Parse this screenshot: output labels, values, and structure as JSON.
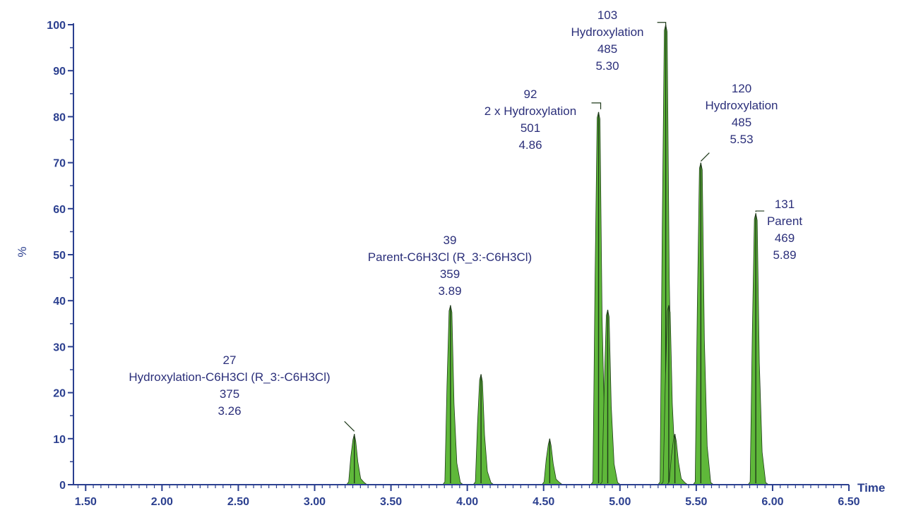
{
  "chart_data": {
    "type": "area",
    "title": "",
    "xlabel": "Time",
    "ylabel": "%",
    "xlim": [
      1.42,
      6.5
    ],
    "ylim": [
      0,
      100
    ],
    "x_ticks": [
      "1.50",
      "2.00",
      "2.50",
      "3.00",
      "3.50",
      "4.00",
      "4.50",
      "5.00",
      "5.50",
      "6.00",
      "6.50"
    ],
    "y_ticks": [
      "0",
      "10",
      "20",
      "30",
      "40",
      "50",
      "60",
      "70",
      "80",
      "90",
      "100"
    ],
    "grid": false,
    "legend": "none",
    "colors": {
      "axis": "#2b3f8f",
      "peak_fill": "#5fb83a",
      "peak_line": "#1f3a1a",
      "label": "#2b2f7a"
    },
    "peaks": [
      {
        "rt": 3.26,
        "height": 11
      },
      {
        "rt": 3.89,
        "height": 39
      },
      {
        "rt": 4.09,
        "height": 24
      },
      {
        "rt": 4.54,
        "height": 10
      },
      {
        "rt": 4.86,
        "height": 81
      },
      {
        "rt": 4.92,
        "height": 38
      },
      {
        "rt": 5.3,
        "height": 100
      },
      {
        "rt": 5.32,
        "height": 39
      },
      {
        "rt": 5.36,
        "height": 11
      },
      {
        "rt": 5.53,
        "height": 70
      },
      {
        "rt": 5.89,
        "height": 59
      }
    ],
    "annotations": [
      {
        "rt": 3.26,
        "lines": [
          "27",
          "Hydroxylation-C6H3Cl (R_3:-C6H3Cl)",
          "375",
          "3.26"
        ]
      },
      {
        "rt": 3.89,
        "lines": [
          "39",
          "Parent-C6H3Cl (R_3:-C6H3Cl)",
          "359",
          "3.89"
        ]
      },
      {
        "rt": 4.86,
        "lines": [
          "92",
          "2 x Hydroxylation",
          "501",
          "4.86"
        ]
      },
      {
        "rt": 5.3,
        "lines": [
          "103",
          "Hydroxylation",
          "485",
          "5.30"
        ]
      },
      {
        "rt": 5.53,
        "lines": [
          "120",
          "Hydroxylation",
          "485",
          "5.53"
        ]
      },
      {
        "rt": 5.89,
        "lines": [
          "131",
          "Parent",
          "469",
          "5.89"
        ]
      }
    ]
  }
}
